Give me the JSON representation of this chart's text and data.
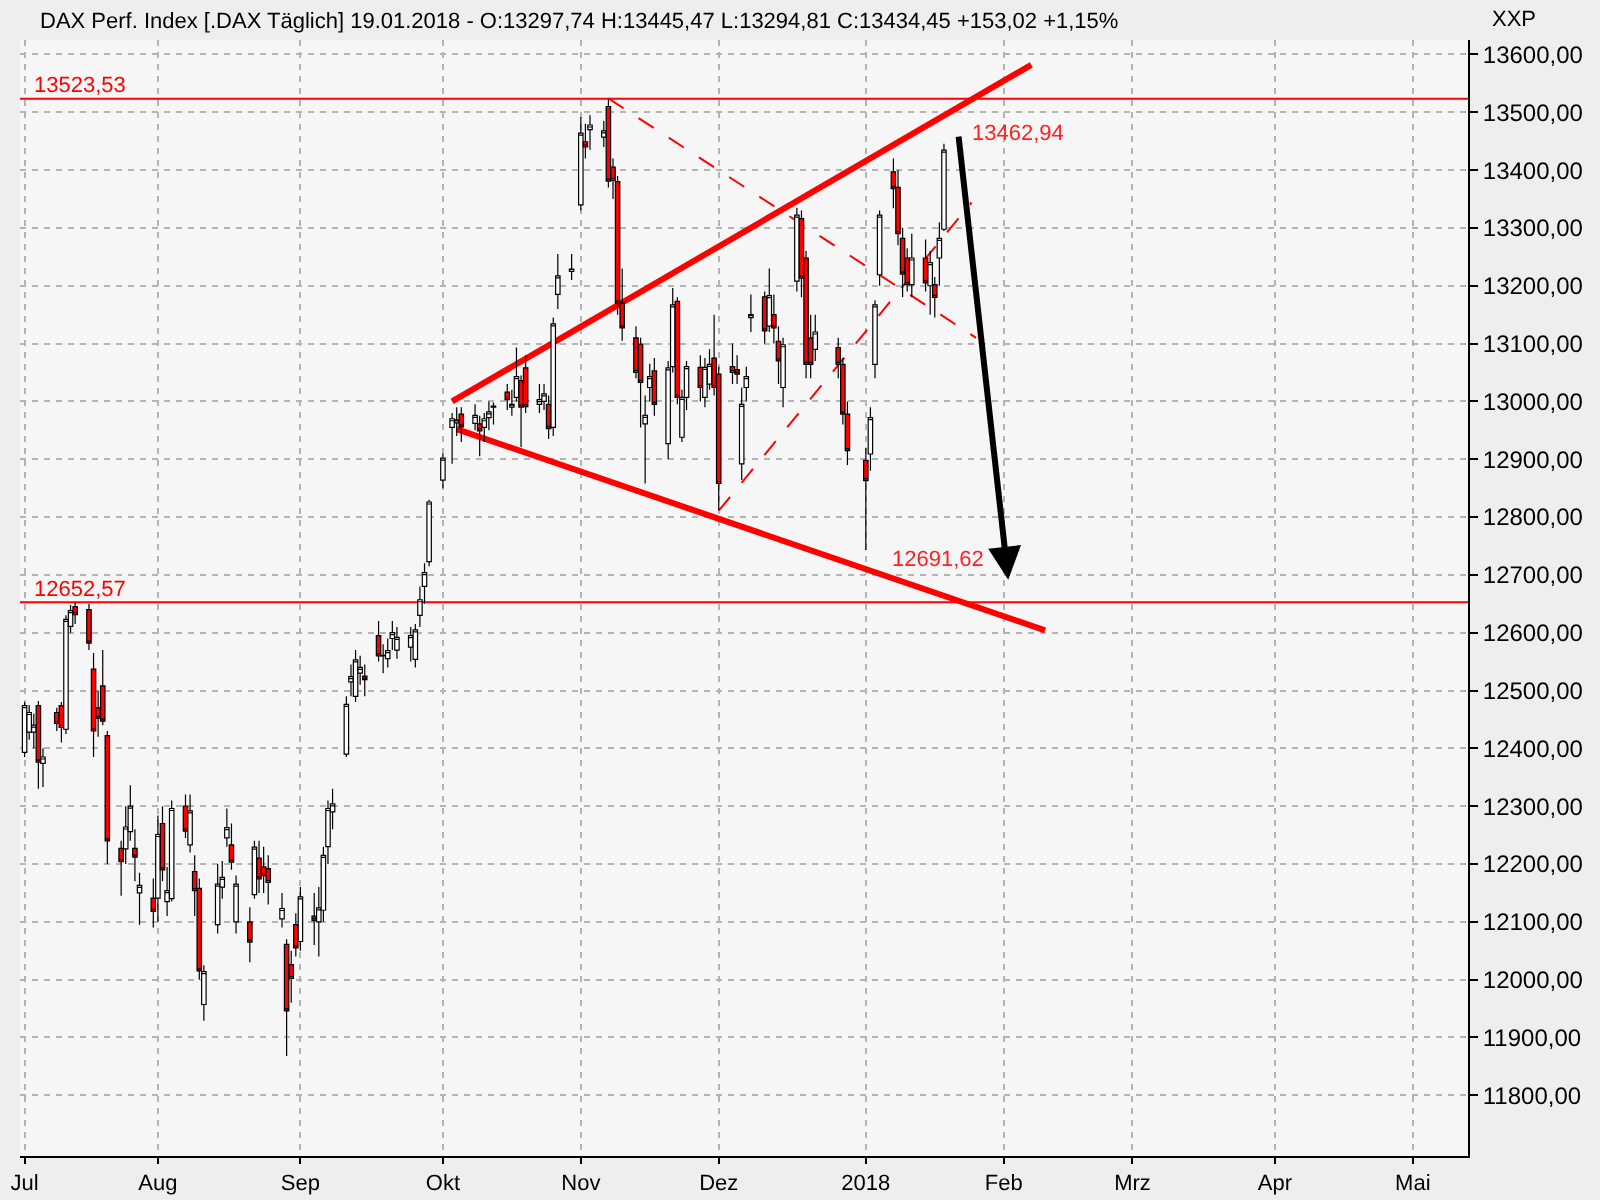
{
  "chart_data": {
    "type": "candlestick",
    "title": "DAX Perf. Index [.DAX Täglich] 19.01.2018 - O:13297,74 H:13445,47 L:13294,81 C:13434,45 +153,02 +1,15%",
    "x": [
      "2017-07-03",
      "2017-07-04",
      "2017-07-05",
      "2017-07-06",
      "2017-07-07",
      "2017-07-10",
      "2017-07-11",
      "2017-07-12",
      "2017-07-13",
      "2017-07-14",
      "2017-07-17",
      "2017-07-18",
      "2017-07-19",
      "2017-07-20",
      "2017-07-21",
      "2017-07-24",
      "2017-07-25",
      "2017-07-26",
      "2017-07-27",
      "2017-07-28",
      "2017-07-31",
      "2017-08-01",
      "2017-08-02",
      "2017-08-03",
      "2017-08-04",
      "2017-08-07",
      "2017-08-08",
      "2017-08-09",
      "2017-08-10",
      "2017-08-11",
      "2017-08-14",
      "2017-08-15",
      "2017-08-16",
      "2017-08-17",
      "2017-08-18",
      "2017-08-21",
      "2017-08-22",
      "2017-08-23",
      "2017-08-24",
      "2017-08-25",
      "2017-08-28",
      "2017-08-29",
      "2017-08-30",
      "2017-08-31",
      "2017-09-01",
      "2017-09-04",
      "2017-09-05",
      "2017-09-06",
      "2017-09-07",
      "2017-09-08",
      "2017-09-11",
      "2017-09-12",
      "2017-09-13",
      "2017-09-14",
      "2017-09-15",
      "2017-09-18",
      "2017-09-19",
      "2017-09-20",
      "2017-09-21",
      "2017-09-22",
      "2017-09-25",
      "2017-09-26",
      "2017-09-27",
      "2017-09-28",
      "2017-09-29",
      "2017-10-02",
      "2017-10-04",
      "2017-10-05",
      "2017-10-06",
      "2017-10-09",
      "2017-10-10",
      "2017-10-11",
      "2017-10-12",
      "2017-10-13",
      "2017-10-16",
      "2017-10-17",
      "2017-10-18",
      "2017-10-19",
      "2017-10-20",
      "2017-10-23",
      "2017-10-24",
      "2017-10-25",
      "2017-10-26",
      "2017-10-27",
      "2017-10-30",
      "2017-11-01",
      "2017-11-02",
      "2017-11-03",
      "2017-11-06",
      "2017-11-07",
      "2017-11-08",
      "2017-11-09",
      "2017-11-10",
      "2017-11-13",
      "2017-11-14",
      "2017-11-15",
      "2017-11-16",
      "2017-11-17",
      "2017-11-20",
      "2017-11-21",
      "2017-11-22",
      "2017-11-23",
      "2017-11-24",
      "2017-11-27",
      "2017-11-28",
      "2017-11-29",
      "2017-11-30",
      "2017-12-01",
      "2017-12-04",
      "2017-12-05",
      "2017-12-06",
      "2017-12-07",
      "2017-12-08",
      "2017-12-11",
      "2017-12-12",
      "2017-12-13",
      "2017-12-14",
      "2017-12-15",
      "2017-12-18",
      "2017-12-19",
      "2017-12-20",
      "2017-12-21",
      "2017-12-22",
      "2017-12-27",
      "2017-12-28",
      "2017-12-29",
      "2018-01-02",
      "2018-01-03",
      "2018-01-04",
      "2018-01-05",
      "2018-01-08",
      "2018-01-09",
      "2018-01-10",
      "2018-01-11",
      "2018-01-12",
      "2018-01-15",
      "2018-01-16",
      "2018-01-17",
      "2018-01-18",
      "2018-01-19"
    ],
    "ohlc": [
      [
        12393,
        12480,
        12385,
        12474
      ],
      [
        12428,
        12475,
        12415,
        12462
      ],
      [
        12428,
        12460,
        12400,
        12440
      ],
      [
        12474,
        12482,
        12330,
        12376
      ],
      [
        12374,
        12400,
        12333,
        12385
      ],
      [
        12462,
        12470,
        12430,
        12443
      ],
      [
        12474,
        12480,
        12410,
        12436
      ],
      [
        12433,
        12630,
        12425,
        12623
      ],
      [
        12611,
        12648,
        12600,
        12638
      ],
      [
        12645,
        12652.57,
        12615,
        12631
      ],
      [
        12640,
        12650,
        12570,
        12582
      ],
      [
        12537,
        12565,
        12385,
        12430
      ],
      [
        12470,
        12500,
        12420,
        12452
      ],
      [
        12508,
        12570,
        12440,
        12447
      ],
      [
        12422,
        12430,
        12200,
        12240
      ],
      [
        12227,
        12240,
        12145,
        12204
      ],
      [
        12226,
        12300,
        12200,
        12264
      ],
      [
        12256,
        12336,
        12240,
        12300
      ],
      [
        12227,
        12260,
        12170,
        12212
      ],
      [
        12150,
        12185,
        12095,
        12163
      ],
      [
        12141,
        12175,
        12090,
        12118
      ],
      [
        12141,
        12284,
        12100,
        12251
      ],
      [
        12270,
        12300,
        12170,
        12190
      ],
      [
        12135,
        12195,
        12110,
        12154
      ],
      [
        12140,
        12310,
        12135,
        12296
      ],
      [
        12300,
        12320,
        12245,
        12257
      ],
      [
        12233,
        12320,
        12220,
        12292
      ],
      [
        12187,
        12215,
        12110,
        12154
      ],
      [
        12158,
        12175,
        12000,
        12015
      ],
      [
        11957,
        12025,
        11929,
        12014
      ],
      [
        12095,
        12200,
        12080,
        12165
      ],
      [
        12160,
        12205,
        12140,
        12177
      ],
      [
        12245,
        12296,
        12230,
        12263
      ],
      [
        12233,
        12270,
        12190,
        12203
      ],
      [
        12100,
        12180,
        12080,
        12165
      ],
      [
        12100,
        12125,
        12030,
        12065
      ],
      [
        12147,
        12240,
        12140,
        12229
      ],
      [
        12210,
        12240,
        12150,
        12174
      ],
      [
        12195,
        12230,
        12150,
        12180
      ],
      [
        12192,
        12215,
        12130,
        12168
      ],
      [
        12105,
        12150,
        12090,
        12123
      ],
      [
        12061,
        12070,
        11868,
        11946
      ],
      [
        12026,
        12050,
        11960,
        12002
      ],
      [
        12095,
        12115,
        12040,
        12055
      ],
      [
        12066,
        12160,
        12050,
        12143
      ],
      [
        12110,
        12150,
        12060,
        12102
      ],
      [
        12100,
        12160,
        12040,
        12124
      ],
      [
        12120,
        12230,
        12100,
        12215
      ],
      [
        12230,
        12310,
        12200,
        12296
      ],
      [
        12290,
        12330,
        12260,
        12304
      ],
      [
        12390,
        12490,
        12385,
        12476
      ],
      [
        12515,
        12545,
        12490,
        12524
      ],
      [
        12490,
        12570,
        12480,
        12553
      ],
      [
        12530,
        12560,
        12510,
        12540
      ],
      [
        12525,
        12545,
        12490,
        12519
      ],
      [
        12595,
        12620,
        12550,
        12560
      ],
      [
        12560,
        12580,
        12530,
        12561
      ],
      [
        12555,
        12590,
        12540,
        12569
      ],
      [
        12590,
        12620,
        12570,
        12600
      ],
      [
        12570,
        12610,
        12555,
        12592
      ],
      [
        12575,
        12610,
        12550,
        12595
      ],
      [
        12554,
        12615,
        12540,
        12605
      ],
      [
        12630,
        12680,
        12610,
        12657
      ],
      [
        12680,
        12720,
        12650,
        12704
      ],
      [
        12723,
        12830,
        12715,
        12826
      ],
      [
        12864,
        12910,
        12850,
        12902
      ],
      [
        12955,
        12980,
        12892,
        12970
      ],
      [
        12963,
        12990,
        12940,
        12968
      ],
      [
        12978,
        12990,
        12930,
        12956
      ],
      [
        12962,
        12995,
        12950,
        12976
      ],
      [
        12961,
        12975,
        12905,
        12949
      ],
      [
        12955,
        12980,
        12930,
        12970
      ],
      [
        12972,
        13000,
        12950,
        12982
      ],
      [
        12990,
        12998,
        12960,
        12992
      ],
      [
        13016,
        13030,
        12985,
        13003
      ],
      [
        12990,
        13020,
        12975,
        12995
      ],
      [
        13007,
        13093,
        13000,
        13043
      ],
      [
        13036,
        13045,
        12921,
        12990
      ],
      [
        13058,
        13080,
        12980,
        12991
      ],
      [
        12995,
        13030,
        12980,
        13003
      ],
      [
        13000,
        13030,
        12985,
        13013
      ],
      [
        12995,
        13010,
        12935,
        12953
      ],
      [
        12955,
        13145,
        12940,
        13134
      ],
      [
        13185,
        13255,
        13160,
        13217
      ],
      [
        13225,
        13255,
        13210,
        13229
      ],
      [
        13340,
        13492,
        13330,
        13464
      ],
      [
        13449,
        13480,
        13420,
        13440
      ],
      [
        13470,
        13495,
        13435,
        13478
      ],
      [
        13457,
        13485,
        13440,
        13468
      ],
      [
        13510,
        13523.53,
        13370,
        13381
      ],
      [
        13405,
        13420,
        13350,
        13382
      ],
      [
        13380,
        13390,
        13150,
        13170
      ],
      [
        13170,
        13230,
        13105,
        13127
      ],
      [
        13110,
        13130,
        13040,
        13050
      ],
      [
        13099,
        13110,
        12955,
        13033
      ],
      [
        12961,
        13010,
        12858,
        12976
      ],
      [
        13024,
        13065,
        13000,
        13043
      ],
      [
        13053,
        13075,
        12975,
        12995
      ],
      [
        12927,
        13070,
        12900,
        13058
      ],
      [
        13060,
        13196,
        13050,
        13167
      ],
      [
        13173,
        13180,
        12995,
        13007
      ],
      [
        12938,
        13020,
        12930,
        13007
      ],
      [
        13007,
        13070,
        12985,
        13060
      ],
      [
        13059,
        13080,
        13000,
        13024
      ],
      [
        13007,
        13075,
        12990,
        13059
      ],
      [
        13030,
        13090,
        13020,
        13064
      ],
      [
        13075,
        13150,
        13010,
        13024
      ],
      [
        13047,
        13060,
        12812,
        12858
      ],
      [
        13060,
        13100,
        13030,
        13050
      ],
      [
        13055,
        13080,
        13030,
        13047
      ],
      [
        12892,
        13024,
        12864,
        12995
      ],
      [
        13024,
        13060,
        13000,
        13043
      ],
      [
        13145,
        13185,
        13120,
        13150
      ],
      [
        13181,
        13190,
        13100,
        13122
      ],
      [
        13130,
        13230,
        13120,
        13183
      ],
      [
        13150,
        13185,
        13100,
        13127
      ],
      [
        13104,
        13130,
        13030,
        13070
      ],
      [
        13024,
        13110,
        12990,
        13098
      ],
      [
        13208,
        13335,
        13190,
        13322
      ],
      [
        13316,
        13330,
        13180,
        13213
      ],
      [
        13248,
        13260,
        13040,
        13064
      ],
      [
        13110,
        13150,
        13040,
        13064
      ],
      [
        13090,
        13150,
        13070,
        13120
      ],
      [
        13093,
        13110,
        13040,
        13064
      ],
      [
        13064,
        13075,
        12960,
        12978
      ],
      [
        12978,
        13000,
        12890,
        12915
      ],
      [
        12898,
        12920,
        12743,
        12863
      ],
      [
        12909,
        12990,
        12880,
        12972
      ],
      [
        13064,
        13175,
        13040,
        13167
      ],
      [
        13219,
        13330,
        13200,
        13322
      ],
      [
        13397,
        13420,
        13334,
        13368
      ],
      [
        13370,
        13400,
        13270,
        13290
      ],
      [
        13282,
        13300,
        13180,
        13220
      ],
      [
        13248,
        13265,
        13190,
        13202
      ],
      [
        13202,
        13290,
        13180,
        13248
      ],
      [
        13248,
        13280,
        13190,
        13205
      ],
      [
        13200,
        13260,
        13150,
        13240
      ],
      [
        13202,
        13215,
        13145,
        13180
      ],
      [
        13248,
        13310,
        13200,
        13282
      ],
      [
        13297.74,
        13445.47,
        13294.81,
        13434.45
      ]
    ],
    "series": [
      {
        "type": "line",
        "color": "#ff0000",
        "line_style": "solid",
        "x": [
          "2017-10-04",
          "2018-02-07"
        ],
        "values": [
          13000,
          13582
        ]
      },
      {
        "type": "line",
        "color": "#ff0000",
        "line_style": "solid",
        "x": [
          "2017-10-05",
          "2018-02-10"
        ],
        "values": [
          12952,
          12604
        ]
      },
      {
        "type": "line",
        "color": "#ff0000",
        "line_style": "dashed",
        "x": [
          "2017-11-07",
          "2018-01-26"
        ],
        "values": [
          13524,
          13110
        ]
      },
      {
        "type": "line",
        "color": "#ff0000",
        "line_style": "dashed",
        "x": [
          "2017-12-01",
          "2018-01-25"
        ],
        "values": [
          12811,
          13344
        ]
      }
    ],
    "ref_lines": [
      {
        "axis": "y",
        "value": 13523.53,
        "label": "13523,53",
        "color": "#ff0000"
      },
      {
        "axis": "y",
        "value": 12652.57,
        "label": "12652,57",
        "color": "#ff0000"
      }
    ],
    "annotations": [
      "13462,94",
      "12691,62",
      "XXP"
    ],
    "xlim": [
      "2017-07-02",
      "2018-05-13"
    ],
    "xticks": [
      {
        "value": "2017-07-03",
        "label": "Jul"
      },
      {
        "value": "2017-08-01",
        "label": "Aug"
      },
      {
        "value": "2017-09-01",
        "label": "Sep"
      },
      {
        "value": "2017-10-02",
        "label": "Okt"
      },
      {
        "value": "2017-11-01",
        "label": "Nov"
      },
      {
        "value": "2017-12-01",
        "label": "Dez"
      },
      {
        "value": "2018-01-02",
        "label": "2018"
      },
      {
        "value": "2018-02-01",
        "label": "Feb"
      },
      {
        "value": "2018-03-01",
        "label": "Mrz"
      },
      {
        "value": "2018-04-01",
        "label": "Apr"
      },
      {
        "value": "2018-05-01",
        "label": "Mai"
      }
    ],
    "ylim": [
      11695,
      13625
    ],
    "yticks": [
      {
        "value": 11800,
        "label": "11800,00"
      },
      {
        "value": 11900,
        "label": "11900,00"
      },
      {
        "value": 12000,
        "label": "12000,00"
      },
      {
        "value": 12100,
        "label": "12100,00"
      },
      {
        "value": 12200,
        "label": "12200,00"
      },
      {
        "value": 12300,
        "label": "12300,00"
      },
      {
        "value": 12400,
        "label": "12400,00"
      },
      {
        "value": 12500,
        "label": "12500,00"
      },
      {
        "value": 12600,
        "label": "12600,00"
      },
      {
        "value": 12700,
        "label": "12700,00"
      },
      {
        "value": 12800,
        "label": "12800,00"
      },
      {
        "value": 12900,
        "label": "12900,00"
      },
      {
        "value": 13000,
        "label": "13000,00"
      },
      {
        "value": 13100,
        "label": "13100,00"
      },
      {
        "value": 13200,
        "label": "13200,00"
      },
      {
        "value": 13300,
        "label": "13300,00"
      },
      {
        "value": 13400,
        "label": "13400,00"
      },
      {
        "value": 13500,
        "label": "13500,00"
      },
      {
        "value": 13600,
        "label": "13600,00"
      }
    ],
    "grid": true
  }
}
